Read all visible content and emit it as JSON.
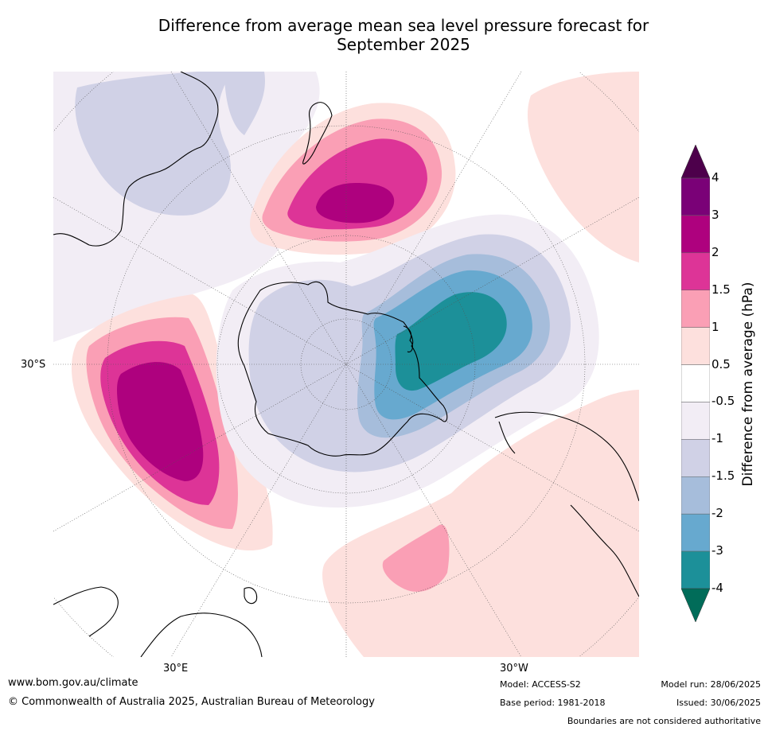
{
  "title": {
    "line1": "Difference from average mean sea level pressure forecast for",
    "line2": "September 2025"
  },
  "map": {
    "projection": "south-polar-stereographic",
    "graticule_labels": {
      "lat_left": "30°S",
      "lon_bottom_left": "30°E",
      "lon_bottom_right": "30°W"
    },
    "anomaly_regions": [
      {
        "region": "south of New Zealand",
        "peak_hPa": 3,
        "sign": "positive"
      },
      {
        "region": "southern Indian Ocean",
        "peak_hPa": 3,
        "sign": "positive"
      },
      {
        "region": "South Atlantic",
        "peak_hPa": 1.5,
        "sign": "positive"
      },
      {
        "region": "Bellingshausen / Amundsen Sea",
        "peak_hPa": -3,
        "sign": "negative"
      },
      {
        "region": "Australia",
        "peak_hPa": -1,
        "sign": "negative"
      }
    ]
  },
  "colorbar": {
    "title": "Difference from average (hPa)",
    "ticks": [
      "4",
      "3",
      "2",
      "1.5",
      "1",
      "0.5",
      "-0.5",
      "-1",
      "-1.5",
      "-2",
      "-3",
      "-4"
    ],
    "bins": [
      {
        "color": "#7a0177"
      },
      {
        "color": "#ae017e"
      },
      {
        "color": "#dd3497"
      },
      {
        "color": "#fa9fb5"
      },
      {
        "color": "#fde0dd"
      },
      {
        "color": "#ffffff"
      },
      {
        "color": "#f2edf5"
      },
      {
        "color": "#d0d1e6"
      },
      {
        "color": "#a6bddb"
      },
      {
        "color": "#67a9cf"
      },
      {
        "color": "#1c9099"
      }
    ],
    "over_color": "#4d004b",
    "under_color": "#016c59"
  },
  "footer": {
    "website": "www.bom.gov.au/climate",
    "copyright": "© Commonwealth of Australia 2025, Australian Bureau of Meteorology",
    "model": "Model: ACCESS-S2",
    "base_period": "Base period: 1981-2018",
    "model_run": "Model run: 28/06/2025",
    "issued": "Issued: 30/06/2025",
    "disclaimer": "Boundaries are not considered authoritative"
  }
}
